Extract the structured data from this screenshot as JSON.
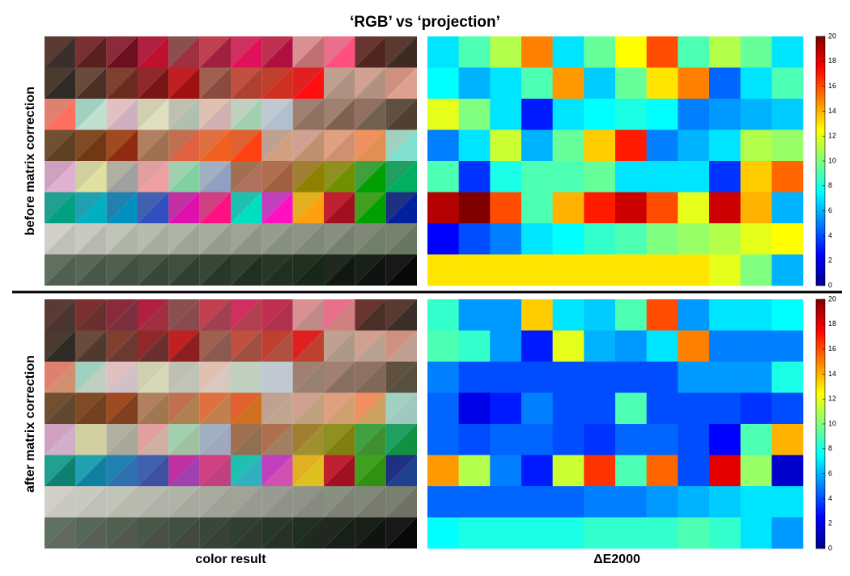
{
  "chart_data": {
    "type": "heatmap",
    "title": "‘RGB’ vs ‘projection’",
    "xlabel_left": "color result",
    "xlabel_right": "ΔE2000",
    "colormap": "jet",
    "clim": [
      0,
      20
    ],
    "cticks": [
      0,
      2,
      4,
      6,
      8,
      10,
      12,
      14,
      16,
      18,
      20
    ],
    "panels": [
      {
        "label": "before matrix correction",
        "patches": [
          [
            [
              "#5a3a33",
              "#3c2e2a"
            ],
            [
              "#7a3030",
              "#5a2020"
            ],
            [
              "#8a2a3a",
              "#6a1020"
            ],
            [
              "#b02040",
              "#c01030"
            ],
            [
              "#8a5050",
              "#a03040"
            ],
            [
              "#c04050",
              "#a02040"
            ],
            [
              "#d03060",
              "#e0105a"
            ],
            [
              "#c03050",
              "#b01040"
            ],
            [
              "#d89090",
              "#c07070"
            ],
            [
              "#e8708a",
              "#ff5080"
            ],
            [
              "#6a3530",
              "#502520"
            ],
            [
              "#5a3a30",
              "#3c2a22"
            ]
          ],
          [
            [
              "#4a3a30",
              "#2e2a25"
            ],
            [
              "#6a4a3a",
              "#4a3025"
            ],
            [
              "#804030",
              "#6a2a20"
            ],
            [
              "#902a2a",
              "#7a1515"
            ],
            [
              "#c02020",
              "#a01010"
            ],
            [
              "#a06050",
              "#8a4a40"
            ],
            [
              "#c05040",
              "#b04030"
            ],
            [
              "#c04030",
              "#d03020"
            ],
            [
              "#e02020",
              "#ff1010"
            ],
            [
              "#c0a090",
              "#b09080"
            ],
            [
              "#d0a090",
              "#b09080"
            ],
            [
              "#d09080",
              "#e0a090"
            ]
          ],
          [
            [
              "#e08070",
              "#ff7060"
            ],
            [
              "#a0d0c0",
              "#c0e0d0"
            ],
            [
              "#e0c0c0",
              "#d0b0c0"
            ],
            [
              "#d0d0b0",
              "#e0e0c0"
            ],
            [
              "#c0c0b0",
              "#b0c0b0"
            ],
            [
              "#e0c0b0",
              "#d0b0b0"
            ],
            [
              "#c0d0c0",
              "#a0d0b0"
            ],
            [
              "#c0c8d0",
              "#b0c0d0"
            ],
            [
              "#a08070",
              "#907060"
            ],
            [
              "#a08070",
              "#806050"
            ],
            [
              "#907060",
              "#706050"
            ],
            [
              "#605040",
              "#504030"
            ]
          ],
          [
            [
              "#705030",
              "#604025"
            ],
            [
              "#804a25",
              "#703815"
            ],
            [
              "#a04a20",
              "#902a10"
            ],
            [
              "#b08060",
              "#a07050"
            ],
            [
              "#c07050",
              "#e06040"
            ],
            [
              "#e07040",
              "#f06020"
            ],
            [
              "#e06030",
              "#ff4010"
            ],
            [
              "#c0a090",
              "#d0a080"
            ],
            [
              "#d0a090",
              "#c09070"
            ],
            [
              "#e0a080",
              "#d09070"
            ],
            [
              "#f09060",
              "#e09050"
            ],
            [
              "#a0d0c0",
              "#80e0d0"
            ]
          ],
          [
            [
              "#d0a0c0",
              "#e0b0d0"
            ],
            [
              "#d0d0a0",
              "#e0e0a0"
            ],
            [
              "#b0b0a0",
              "#a0a0a0"
            ],
            [
              "#e0a0a0",
              "#f0a0a0"
            ],
            [
              "#a0d0b0",
              "#80d0a0"
            ],
            [
              "#a0b0c0",
              "#90a0c0"
            ],
            [
              "#a07050",
              "#b07060"
            ],
            [
              "#b07050",
              "#a06040"
            ],
            [
              "#a08030",
              "#908000"
            ],
            [
              "#909020",
              "#709000"
            ],
            [
              "#40a040",
              "#00a000"
            ],
            [
              "#20a060",
              "#00b060"
            ]
          ],
          [
            [
              "#20a090",
              "#00a080"
            ],
            [
              "#20a0b0",
              "#00b0c0"
            ],
            [
              "#2080b0",
              "#0090c0"
            ],
            [
              "#4060b0",
              "#3050c0"
            ],
            [
              "#c030a0",
              "#e010b0"
            ],
            [
              "#d04080",
              "#ff1080"
            ],
            [
              "#20c0b0",
              "#00e0c0"
            ],
            [
              "#c040c0",
              "#ff10c0"
            ],
            [
              "#e0b020",
              "#ffa010"
            ],
            [
              "#c02030",
              "#a01020"
            ],
            [
              "#40a020",
              "#00a000"
            ],
            [
              "#203080",
              "#0020a0"
            ]
          ],
          [
            [
              "#d0d0c8",
              "#c0c0b8"
            ],
            [
              "#c8cac0",
              "#b8bab0"
            ],
            [
              "#c0c4b8",
              "#b0b4a8"
            ],
            [
              "#b8bcb0",
              "#a8aca0"
            ],
            [
              "#b0b4a8",
              "#a0a498"
            ],
            [
              "#a8aca0",
              "#989c90"
            ],
            [
              "#a0a498",
              "#909488"
            ],
            [
              "#989c90",
              "#889080"
            ],
            [
              "#909488",
              "#808878"
            ],
            [
              "#889080",
              "#788070"
            ],
            [
              "#808878",
              "#708068"
            ],
            [
              "#788070",
              "#687860"
            ]
          ],
          [
            [
              "#607060",
              "#506050"
            ],
            [
              "#586858",
              "#485848"
            ],
            [
              "#506050",
              "#405040"
            ],
            [
              "#485848",
              "#384838"
            ],
            [
              "#405040",
              "#304030"
            ],
            [
              "#384838",
              "#283828"
            ],
            [
              "#304030",
              "#203020"
            ],
            [
              "#283828",
              "#203020"
            ],
            [
              "#203020",
              "#182818"
            ],
            [
              "#202820",
              "#101810"
            ],
            [
              "#182018",
              "#101410"
            ],
            [
              "#181818",
              "#080808"
            ]
          ]
        ],
        "values": [
          [
            7,
            9,
            11,
            15,
            7,
            9.5,
            12.5,
            16,
            9,
            11,
            9.5,
            7
          ],
          [
            7.5,
            6,
            7,
            9,
            14.5,
            6.5,
            9.5,
            13,
            15,
            4.5,
            7,
            9
          ],
          [
            12,
            10,
            7,
            3,
            7,
            7.5,
            8,
            7.5,
            5,
            5.5,
            6,
            6.5
          ],
          [
            5,
            7,
            11.5,
            6,
            9.5,
            13.5,
            17,
            5,
            6,
            7,
            11,
            10.5
          ],
          [
            9,
            3.5,
            8,
            9,
            9,
            9.5,
            7,
            7,
            7,
            3.5,
            13.5,
            15.5
          ],
          [
            19,
            20,
            16,
            9,
            14,
            17,
            18.5,
            16,
            12,
            18.5,
            14,
            6
          ],
          [
            2.5,
            4,
            5,
            7,
            7.5,
            8.5,
            9,
            10,
            10.5,
            11,
            12,
            12.5
          ],
          [
            13,
            13,
            13,
            13,
            13,
            13,
            13,
            13,
            13,
            12,
            10,
            6
          ]
        ]
      },
      {
        "label": "after matrix correction",
        "patches": [
          [
            [
              "#5a3a33",
              "#4a3530"
            ],
            [
              "#7a3030",
              "#6a3030"
            ],
            [
              "#8a2a3a",
              "#7a3040"
            ],
            [
              "#b02040",
              "#a03040"
            ],
            [
              "#8a5050",
              "#8a4a50"
            ],
            [
              "#c04050",
              "#a04050"
            ],
            [
              "#d03060",
              "#b04050"
            ],
            [
              "#c03050",
              "#b03050"
            ],
            [
              "#d89090",
              "#c08a88"
            ],
            [
              "#e8708a",
              "#d08080"
            ],
            [
              "#6a3530",
              "#4a3028"
            ],
            [
              "#5a3a30",
              "#3a2e28"
            ]
          ],
          [
            [
              "#4a3a30",
              "#2e2a25"
            ],
            [
              "#6a4a3a",
              "#503a30"
            ],
            [
              "#804030",
              "#6a3a30"
            ],
            [
              "#902a2a",
              "#6a3030"
            ],
            [
              "#c02020",
              "#8a2020"
            ],
            [
              "#a06050",
              "#8a5a50"
            ],
            [
              "#c05040",
              "#a05040"
            ],
            [
              "#c04030",
              "#b05040"
            ],
            [
              "#e02020",
              "#c04030"
            ],
            [
              "#c0a090",
              "#b09888"
            ],
            [
              "#d0a090",
              "#b8a090"
            ],
            [
              "#d09080",
              "#c0a090"
            ]
          ],
          [
            [
              "#e08070",
              "#d09070"
            ],
            [
              "#a0d0c0",
              "#c0d0c0"
            ],
            [
              "#e0c0c0",
              "#d0c0c8"
            ],
            [
              "#d0d0b0",
              "#d8d8b8"
            ],
            [
              "#c0c0b0",
              "#c0c4b8"
            ],
            [
              "#e0c0b0",
              "#d8c8c0"
            ],
            [
              "#c0d0c0",
              "#c0d0c0"
            ],
            [
              "#c0c8d0",
              "#c0c8d0"
            ],
            [
              "#a08070",
              "#988070"
            ],
            [
              "#a08070",
              "#887060"
            ],
            [
              "#907060",
              "#806858"
            ],
            [
              "#605040",
              "#585040"
            ]
          ],
          [
            [
              "#705030",
              "#604830"
            ],
            [
              "#804a25",
              "#704020"
            ],
            [
              "#a04a20",
              "#804020"
            ],
            [
              "#b08060",
              "#a07850"
            ],
            [
              "#c07050",
              "#b08050"
            ],
            [
              "#e07040",
              "#c08050"
            ],
            [
              "#e06030",
              "#d07020"
            ],
            [
              "#c0a090",
              "#c0a890"
            ],
            [
              "#d0a090",
              "#c0a080"
            ],
            [
              "#e0a080",
              "#d0a070"
            ],
            [
              "#f09060",
              "#d0a060"
            ],
            [
              "#a0d0c0",
              "#a0c8c0"
            ]
          ],
          [
            [
              "#d0a0c0",
              "#d0b0c8"
            ],
            [
              "#d0d0a0",
              "#d0d0a0"
            ],
            [
              "#b0b0a0",
              "#a8a898"
            ],
            [
              "#e0a0a0",
              "#d0b0a0"
            ],
            [
              "#a0d0b0",
              "#a0c0a0"
            ],
            [
              "#a0b0c0",
              "#a0a8c0"
            ],
            [
              "#a07050",
              "#907050"
            ],
            [
              "#b07050",
              "#a08060"
            ],
            [
              "#a08030",
              "#a09030"
            ],
            [
              "#909020",
              "#808010"
            ],
            [
              "#40a040",
              "#409030"
            ],
            [
              "#20a060",
              "#109040"
            ]
          ],
          [
            [
              "#20a090",
              "#108070"
            ],
            [
              "#20a0b0",
              "#1080a0"
            ],
            [
              "#2080b0",
              "#3070b0"
            ],
            [
              "#4060b0",
              "#4050a0"
            ],
            [
              "#c030a0",
              "#a040b0"
            ],
            [
              "#d04080",
              "#c04080"
            ],
            [
              "#20c0b0",
              "#30b0c0"
            ],
            [
              "#c040c0",
              "#d050b0"
            ],
            [
              "#e0b020",
              "#e0c020"
            ],
            [
              "#c02030",
              "#a01020"
            ],
            [
              "#40a020",
              "#309010"
            ],
            [
              "#203080",
              "#204090"
            ]
          ],
          [
            [
              "#d0d0c8",
              "#c8c8c0"
            ],
            [
              "#c8cac0",
              "#c0c0b8"
            ],
            [
              "#c0c4b8",
              "#b8bab0"
            ],
            [
              "#b8bcb0",
              "#b0b2a8"
            ],
            [
              "#b0b4a8",
              "#a8aaa0"
            ],
            [
              "#a8aca0",
              "#a0a298"
            ],
            [
              "#a0a498",
              "#989a90"
            ],
            [
              "#989c90",
              "#909288"
            ],
            [
              "#909488",
              "#888a80"
            ],
            [
              "#889080",
              "#808278"
            ],
            [
              "#808878",
              "#787a70"
            ],
            [
              "#788070",
              "#707268"
            ]
          ],
          [
            [
              "#607060",
              "#606860"
            ],
            [
              "#586858",
              "#586058"
            ],
            [
              "#506050",
              "#505850"
            ],
            [
              "#485848",
              "#485048"
            ],
            [
              "#405040",
              "#404840"
            ],
            [
              "#384838",
              "#384038"
            ],
            [
              "#304030",
              "#303830"
            ],
            [
              "#283828",
              "#283028"
            ],
            [
              "#203020",
              "#202820"
            ],
            [
              "#202820",
              "#181e18"
            ],
            [
              "#182018",
              "#101410"
            ],
            [
              "#181818",
              "#080808"
            ]
          ]
        ],
        "values": [
          [
            8.5,
            5.5,
            5.5,
            13.5,
            7,
            6.5,
            9,
            16,
            5.5,
            7,
            7,
            7.5
          ],
          [
            9,
            8.5,
            5.5,
            3,
            12,
            6,
            5.5,
            7,
            15,
            5,
            5,
            5
          ],
          [
            5,
            4,
            4,
            4,
            4,
            4,
            4,
            4,
            5.5,
            5.5,
            5.5,
            8
          ],
          [
            4.5,
            2,
            3,
            5,
            4,
            4,
            9,
            4,
            4,
            4,
            3.5,
            4
          ],
          [
            4.5,
            4,
            4.5,
            4.5,
            4,
            3.5,
            4.5,
            4.5,
            4,
            2.5,
            9,
            14
          ],
          [
            14.5,
            11,
            5,
            3,
            11.5,
            16.5,
            9,
            15.5,
            4,
            18,
            10.5,
            1.5
          ],
          [
            4.5,
            4.5,
            4.5,
            4.5,
            4.5,
            5,
            5,
            5.5,
            6,
            6.5,
            7,
            7
          ],
          [
            7.5,
            8,
            8,
            8,
            8,
            8.5,
            8.5,
            8.5,
            9,
            8.5,
            7,
            5.5
          ]
        ]
      }
    ]
  }
}
